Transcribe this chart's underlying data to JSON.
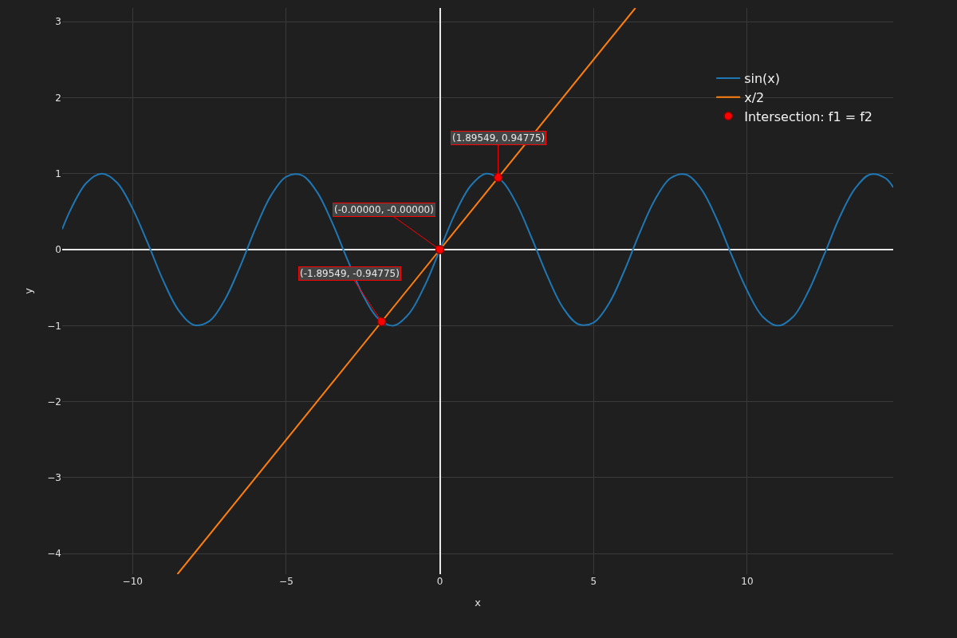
{
  "chart_data": {
    "type": "line",
    "xlabel": "x",
    "ylabel": "y",
    "xlim": [
      -12.29,
      14.75
    ],
    "ylim": [
      -4.27,
      3.18
    ],
    "xticks": [
      {
        "value": -10,
        "label": "−10"
      },
      {
        "value": -5,
        "label": "−5"
      },
      0,
      5,
      10
    ],
    "yticks": [
      {
        "value": -4,
        "label": "−4"
      },
      {
        "value": -3,
        "label": "−3"
      },
      {
        "value": -2,
        "label": "−2"
      },
      {
        "value": -1,
        "label": "−1"
      },
      0,
      1,
      2,
      3
    ],
    "grid": true,
    "legend": "top right",
    "series": [
      {
        "name": "sin(x)",
        "color": "#1f77b4",
        "x": [
          -12.29,
          -12,
          -11.5,
          -11,
          -10.5,
          -10,
          -9.5,
          -9,
          -8.5,
          -8,
          -7.5,
          -7,
          -6.5,
          -6,
          -5.5,
          -5,
          -4.5,
          -4,
          -3.5,
          -3,
          -2.5,
          -2,
          -1.5,
          -1,
          -0.5,
          0,
          0.5,
          1,
          1.5,
          2,
          2.5,
          3,
          3.5,
          4,
          4.5,
          5,
          5.5,
          6,
          6.5,
          7,
          7.5,
          8,
          8.5,
          9,
          9.5,
          10,
          10.5,
          11,
          11.5,
          12,
          12.5,
          13,
          13.5,
          14,
          14.5,
          14.75
        ],
        "values": [
          0.27,
          0.54,
          0.88,
          1.0,
          0.88,
          0.54,
          0.08,
          -0.41,
          -0.8,
          -0.99,
          -0.94,
          -0.66,
          -0.22,
          0.28,
          0.71,
          0.96,
          0.98,
          0.76,
          0.35,
          -0.14,
          -0.6,
          -0.91,
          -1.0,
          -0.84,
          -0.48,
          0,
          0.48,
          0.84,
          1.0,
          0.91,
          0.6,
          0.14,
          -0.35,
          -0.76,
          -0.98,
          -0.96,
          -0.71,
          -0.28,
          0.22,
          0.66,
          0.94,
          0.99,
          0.8,
          0.41,
          -0.08,
          -0.54,
          -0.88,
          -1.0,
          -0.88,
          -0.54,
          -0.07,
          0.42,
          0.8,
          0.99,
          0.94,
          0.82
        ]
      },
      {
        "name": "x/2",
        "color": "#ff7f0e",
        "x": [
          -8.54,
          6.36
        ],
        "values": [
          -4.27,
          3.18
        ]
      },
      {
        "name": "Intersection: f1 = f2",
        "type": "scatter",
        "marker": "circle",
        "color": "#ff0000",
        "x": [
          -1.89549,
          0,
          1.89549
        ],
        "values": [
          -0.94775,
          0,
          0.94775
        ]
      }
    ],
    "annotations": [
      {
        "text": "(-1.89549, -0.94775)",
        "x": -1.89549,
        "y": -0.94775
      },
      {
        "text": "(-0.00000, -0.00000)",
        "x": 0,
        "y": 0
      },
      {
        "text": "(1.89549, 0.94775)",
        "x": 1.89549,
        "y": 0.94775
      }
    ]
  }
}
